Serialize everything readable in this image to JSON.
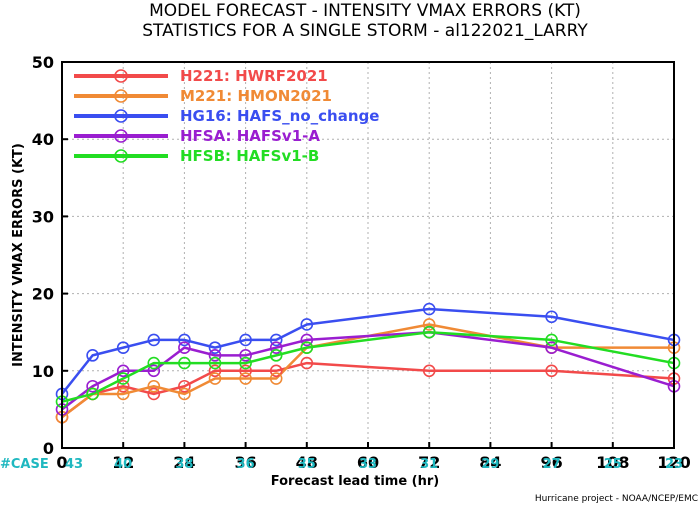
{
  "chart_data": {
    "type": "line",
    "title": "MODEL FORECAST - INTENSITY VMAX ERRORS (KT)",
    "subtitle": "STATISTICS FOR A SINGLE STORM - al122021_LARRY",
    "xlabel": "Forecast lead time (hr)",
    "ylabel": "INTENSITY VMAX ERRORS (KT)",
    "xlim": [
      0,
      120
    ],
    "ylim": [
      0,
      50
    ],
    "xticks": [
      0,
      12,
      24,
      36,
      48,
      60,
      72,
      84,
      96,
      108,
      120
    ],
    "yticks": [
      0,
      10,
      20,
      30,
      40,
      50
    ],
    "grid": true,
    "legend_position": "top-left",
    "case_label": "#CASE",
    "cases": [
      43,
      40,
      38,
      36,
      35,
      33,
      31,
      29,
      27,
      25,
      23
    ],
    "credit": "Hurricane project - NOAA/NCEP/EMC",
    "series": [
      {
        "name": "H221: HWRF2021",
        "color": "#f24a4a",
        "x": [
          0,
          6,
          12,
          18,
          24,
          30,
          36,
          42,
          48,
          72,
          96,
          120
        ],
        "y": [
          4,
          7,
          8,
          7,
          8,
          10,
          10,
          10,
          11,
          10,
          10,
          9
        ]
      },
      {
        "name": "M221: HMON2021",
        "color": "#f08a35",
        "x": [
          0,
          6,
          12,
          18,
          24,
          30,
          36,
          42,
          48,
          72,
          96,
          120
        ],
        "y": [
          4,
          7,
          7,
          8,
          7,
          9,
          9,
          9,
          13,
          16,
          13,
          13
        ]
      },
      {
        "name": "HG16: HAFS_no_change",
        "color": "#3a4ef0",
        "x": [
          0,
          6,
          12,
          18,
          24,
          30,
          36,
          42,
          48,
          72,
          96,
          120
        ],
        "y": [
          7,
          12,
          13,
          14,
          14,
          13,
          14,
          14,
          16,
          18,
          17,
          14
        ]
      },
      {
        "name": "HFSA: HAFSv1-A",
        "color": "#9a1ed0",
        "x": [
          0,
          6,
          12,
          18,
          24,
          30,
          36,
          42,
          48,
          72,
          96,
          120
        ],
        "y": [
          5,
          8,
          10,
          10,
          13,
          12,
          12,
          13,
          14,
          15,
          13,
          8
        ]
      },
      {
        "name": "HFSB: HAFSv1-B",
        "color": "#22dd22",
        "x": [
          0,
          6,
          12,
          18,
          24,
          30,
          36,
          42,
          48,
          72,
          96,
          120
        ],
        "y": [
          6,
          7,
          9,
          11,
          11,
          11,
          11,
          12,
          13,
          15,
          14,
          11
        ]
      }
    ]
  }
}
